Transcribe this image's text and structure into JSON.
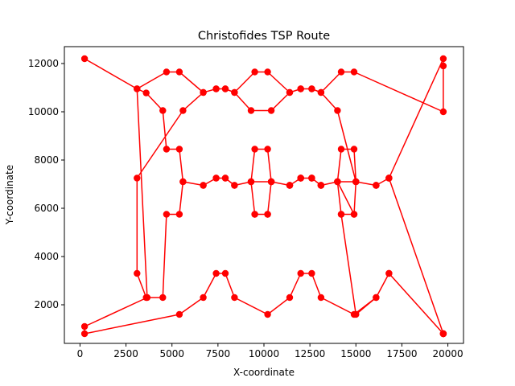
{
  "chart_data": {
    "type": "line",
    "title": "Christofides TSP Route",
    "xlabel": "X-coordinate",
    "ylabel": "Y-coordinate",
    "xlim": [
      -850,
      20850
    ],
    "ylim": [
      400,
      12700
    ],
    "xticks": [
      0,
      2500,
      5000,
      7500,
      10000,
      12500,
      15000,
      17500,
      20000
    ],
    "yticks": [
      2000,
      4000,
      6000,
      8000,
      10000,
      12000
    ],
    "grid": false,
    "color": "#ff0000",
    "marker": "circle",
    "series": [
      {
        "x": [
          250,
          3100,
          3600,
          4500,
          4700,
          5400,
          5600,
          6700,
          7400,
          7900,
          8400,
          9300,
          10400,
          11400,
          12000,
          12600,
          13100,
          14000,
          15000,
          16100,
          16800,
          19750,
          19750,
          19750,
          14900,
          14200,
          13100,
          12600,
          12000,
          11400,
          10200,
          9500,
          8400,
          7900,
          7400,
          6700,
          5400,
          4700,
          3100,
          3650,
          250,
          250,
          5400,
          6700,
          7400,
          7900,
          8400,
          10200,
          11400,
          12000,
          12600,
          13100,
          14900,
          16100,
          16800,
          19750,
          16800,
          16100,
          15000,
          14200,
          14900,
          14000,
          13100,
          12600,
          12000,
          11400,
          10400,
          10200,
          9500,
          9300,
          9500,
          10200,
          10400,
          11400,
          12000,
          12600,
          13100,
          14000,
          14200,
          14900,
          15000,
          16100,
          16800,
          19750,
          19750,
          19750,
          16800,
          16100,
          15000,
          14000,
          13100,
          12600,
          12000,
          11400,
          10400,
          9300,
          8400,
          7900,
          7400,
          6700,
          5600,
          3100,
          3100,
          3600,
          4500,
          4700,
          5400,
          5600,
          6700,
          7400,
          7900,
          8400,
          9300,
          9500,
          10200,
          10400,
          11400,
          12000,
          12600,
          13100,
          14000,
          14200,
          14900,
          15000,
          16100,
          16800,
          19750,
          19750
        ],
        "y": [
          12200,
          10950,
          10780,
          10050,
          8450,
          8450,
          7100,
          6950,
          7250,
          7250,
          6950,
          7100,
          7100,
          6950,
          7250,
          7250,
          6950,
          7100,
          7100,
          6950,
          7250,
          12200,
          11900,
          10000,
          11650,
          11650,
          10800,
          10950,
          10950,
          10800,
          11650,
          11650,
          10800,
          10950,
          10950,
          10800,
          11650,
          11650,
          10950,
          2300,
          1100,
          800,
          1600,
          2300,
          3300,
          3300,
          2300,
          1600,
          2300,
          3300,
          3300,
          2300,
          1600,
          2300,
          3300,
          800,
          3300,
          2300,
          1600,
          5750,
          5750,
          7100,
          6950,
          7250,
          7250,
          6950,
          7100,
          5750,
          5750,
          7100,
          8450,
          8450,
          7100,
          6950,
          7250,
          7250,
          6950,
          7100,
          8450,
          8450,
          7100,
          6950,
          7250,
          800,
          800,
          800,
          7250,
          6950,
          7100,
          10050,
          10800,
          10950,
          10950,
          10800,
          10050,
          10050,
          10800,
          10950,
          10950,
          10800,
          10050,
          7250,
          3300,
          2300,
          2300,
          5750,
          5750,
          7100,
          6950,
          7250,
          7250,
          6950,
          7100,
          5750,
          5750,
          7100,
          6950,
          7250,
          7250,
          6950,
          7100,
          5750,
          5750,
          7100,
          6950,
          7250,
          800,
          800
        ]
      }
    ]
  }
}
